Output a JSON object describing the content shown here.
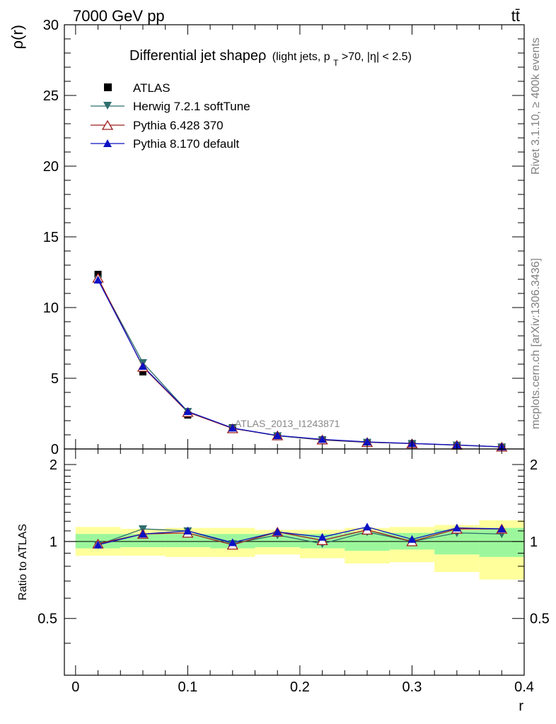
{
  "header": {
    "left": "7000 GeV pp",
    "right": "tt̄"
  },
  "side_labels": {
    "rivet": "Rivet 3.1.10, ≥ 400k events",
    "mcplots": "mcplots.cern.ch [arXiv:1306.3436]"
  },
  "chart_data": [
    {
      "type": "line",
      "title": "Differential jet shapeρ",
      "subtitle_parts": [
        "(light jets, p",
        "T",
        ">70, |η| < 2.5)"
      ],
      "ylabel": "ρ(r)",
      "xlabel": "r",
      "xlim": [
        -0.01,
        0.4
      ],
      "ylim": [
        0,
        30
      ],
      "y_ticks": [
        0,
        5,
        10,
        15,
        20,
        25,
        30
      ],
      "y_tick_labels": [
        "0",
        "5",
        "10",
        "15",
        "20",
        "25",
        "30"
      ],
      "watermark": "ATLAS_2013_I1243871",
      "x": [
        0.02,
        0.06,
        0.1,
        0.14,
        0.18,
        0.22,
        0.26,
        0.3,
        0.34,
        0.38
      ],
      "legend": [
        "ATLAS",
        "Herwig 7.2.1 softTune",
        "Pythia 6.428 370",
        "Pythia 8.170 default"
      ],
      "series": [
        {
          "name": "ATLAS",
          "color": "#000000",
          "marker": "square",
          "values": [
            12.35,
            5.45,
            2.4,
            1.5,
            0.87,
            0.65,
            0.43,
            0.38,
            0.25,
            0.13
          ]
        },
        {
          "name": "Herwig 7.2.1 softTune",
          "color": "#2f6e6e",
          "marker": "triangle-down",
          "values": [
            12.0,
            6.1,
            2.65,
            1.47,
            0.93,
            0.63,
            0.47,
            0.38,
            0.27,
            0.14
          ]
        },
        {
          "name": "Pythia 6.428 370",
          "color": "#9c1e1e",
          "marker": "triangle-up-open",
          "values": [
            12.1,
            5.8,
            2.6,
            1.45,
            0.95,
            0.66,
            0.48,
            0.38,
            0.28,
            0.15
          ]
        },
        {
          "name": "Pythia 8.170 default",
          "color": "#0b12c4",
          "marker": "triangle-up",
          "values": [
            11.95,
            5.85,
            2.65,
            1.48,
            0.95,
            0.68,
            0.5,
            0.39,
            0.28,
            0.15
          ]
        }
      ]
    },
    {
      "type": "line",
      "title": "",
      "ylabel": "Ratio to ATLAS",
      "xlabel": "r",
      "xlim": [
        -0.01,
        0.4
      ],
      "ylim": [
        0.3,
        2.3
      ],
      "y_ticks": [
        0.5,
        1,
        2
      ],
      "y_tick_labels": [
        "0.5",
        "1",
        "2"
      ],
      "x_ticks": [
        0,
        0.1,
        0.2,
        0.3,
        0.4
      ],
      "x_tick_labels": [
        "0",
        "0.1",
        "0.2",
        "0.3",
        "0.4"
      ],
      "x": [
        0.02,
        0.06,
        0.1,
        0.14,
        0.18,
        0.22,
        0.26,
        0.3,
        0.34,
        0.38
      ],
      "bands": {
        "inner_color": "#9cf79c",
        "outer_color": "#ffff9c",
        "edges": [
          0.0,
          0.04,
          0.08,
          0.12,
          0.16,
          0.2,
          0.24,
          0.28,
          0.32,
          0.36,
          0.4
        ],
        "inner_low": [
          0.94,
          0.95,
          0.95,
          0.94,
          0.95,
          0.94,
          0.92,
          0.93,
          0.89,
          0.87
        ],
        "inner_high": [
          1.07,
          1.07,
          1.07,
          1.07,
          1.07,
          1.07,
          1.09,
          1.08,
          1.11,
          1.13
        ],
        "outer_low": [
          0.88,
          0.88,
          0.87,
          0.87,
          0.89,
          0.86,
          0.82,
          0.83,
          0.76,
          0.71
        ],
        "outer_high": [
          1.14,
          1.12,
          1.13,
          1.13,
          1.11,
          1.11,
          1.13,
          1.14,
          1.16,
          1.21
        ]
      },
      "series": [
        {
          "name": "Herwig 7.2.1 softTune",
          "color": "#2f6e6e",
          "marker": "triangle-down",
          "values": [
            0.97,
            1.12,
            1.1,
            0.98,
            1.06,
            0.98,
            1.09,
            1.0,
            1.08,
            1.07
          ]
        },
        {
          "name": "Pythia 6.428 370",
          "color": "#9c1e1e",
          "marker": "triangle-up-open",
          "values": [
            0.98,
            1.07,
            1.08,
            0.97,
            1.09,
            1.01,
            1.11,
            1.0,
            1.12,
            1.12
          ]
        },
        {
          "name": "Pythia 8.170 default",
          "color": "#0b12c4",
          "marker": "triangle-up",
          "values": [
            0.97,
            1.07,
            1.1,
            0.99,
            1.09,
            1.04,
            1.14,
            1.02,
            1.13,
            1.12
          ]
        }
      ]
    }
  ]
}
